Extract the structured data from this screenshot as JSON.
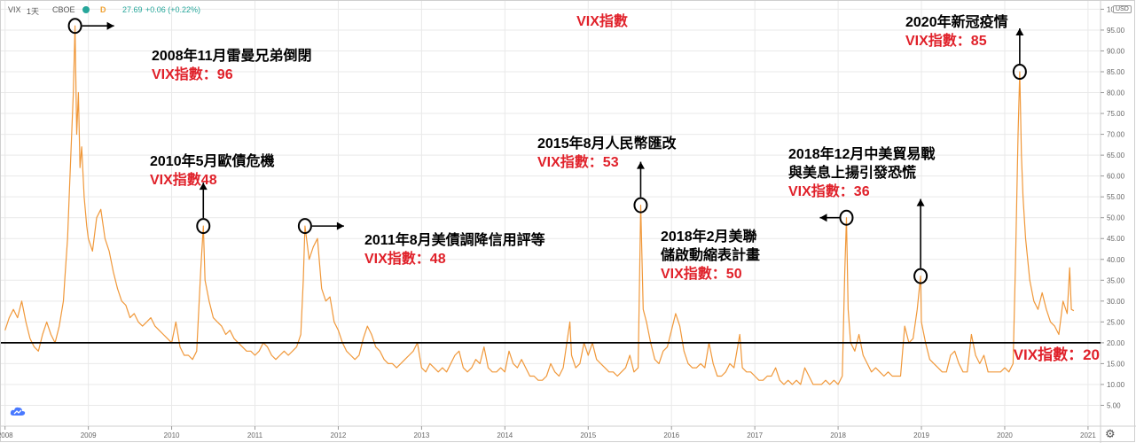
{
  "header": {
    "symbol": "VIX",
    "interval": "1天",
    "exchange": "CBOE",
    "status_dot_color": "#26a69a",
    "delay_badge": "D",
    "last": "27.69",
    "change": "+0.06 (+0.22%)",
    "currency": "USD"
  },
  "colors": {
    "line": "#f0983a",
    "annotation_black": "#000000",
    "annotation_red": "#e0212a",
    "axis_text": "#666666",
    "grid": "#e9e9e9"
  },
  "icons": {
    "logo": "tv-cloud-icon",
    "settings": "gear-icon"
  },
  "chart_data": {
    "type": "line",
    "title": "VIX指數",
    "x_axis": {
      "range": [
        2007.95,
        2021.15
      ],
      "ticks": [
        "2008",
        "2009",
        "2010",
        "2011",
        "2012",
        "2013",
        "2014",
        "2015",
        "2016",
        "2017",
        "2018",
        "2019",
        "2020",
        "2021"
      ]
    },
    "y_axis": {
      "range": [
        0,
        102
      ],
      "side": "right",
      "ticks": [
        "5.00",
        "10.00",
        "15.00",
        "20.00",
        "25.00",
        "30.00",
        "35.00",
        "40.00",
        "45.00",
        "50.00",
        "55.00",
        "60.00",
        "65.00",
        "70.00",
        "75.00",
        "80.00",
        "85.00",
        "90.00",
        "95.00",
        "100.00"
      ]
    },
    "grid": true,
    "series": [
      {
        "name": "VIX",
        "points": [
          [
            2008.0,
            23
          ],
          [
            2008.05,
            26
          ],
          [
            2008.1,
            28
          ],
          [
            2008.15,
            26
          ],
          [
            2008.2,
            30
          ],
          [
            2008.25,
            25
          ],
          [
            2008.3,
            21
          ],
          [
            2008.35,
            19
          ],
          [
            2008.4,
            18
          ],
          [
            2008.45,
            22
          ],
          [
            2008.5,
            25
          ],
          [
            2008.55,
            22
          ],
          [
            2008.6,
            20
          ],
          [
            2008.65,
            24
          ],
          [
            2008.7,
            30
          ],
          [
            2008.72,
            36
          ],
          [
            2008.75,
            45
          ],
          [
            2008.77,
            55
          ],
          [
            2008.8,
            70
          ],
          [
            2008.82,
            80
          ],
          [
            2008.84,
            96
          ],
          [
            2008.86,
            70
          ],
          [
            2008.88,
            80
          ],
          [
            2008.9,
            62
          ],
          [
            2008.92,
            67
          ],
          [
            2008.95,
            55
          ],
          [
            2008.98,
            48
          ],
          [
            2009.0,
            45
          ],
          [
            2009.05,
            42
          ],
          [
            2009.1,
            50
          ],
          [
            2009.15,
            52
          ],
          [
            2009.2,
            45
          ],
          [
            2009.25,
            42
          ],
          [
            2009.3,
            37
          ],
          [
            2009.35,
            33
          ],
          [
            2009.4,
            30
          ],
          [
            2009.45,
            29
          ],
          [
            2009.5,
            26
          ],
          [
            2009.55,
            27
          ],
          [
            2009.6,
            25
          ],
          [
            2009.65,
            24
          ],
          [
            2009.7,
            25
          ],
          [
            2009.75,
            26
          ],
          [
            2009.8,
            24
          ],
          [
            2009.85,
            23
          ],
          [
            2009.9,
            22
          ],
          [
            2009.95,
            21
          ],
          [
            2010.0,
            20
          ],
          [
            2010.05,
            25
          ],
          [
            2010.1,
            19
          ],
          [
            2010.15,
            17
          ],
          [
            2010.2,
            17
          ],
          [
            2010.25,
            16
          ],
          [
            2010.3,
            18
          ],
          [
            2010.35,
            38
          ],
          [
            2010.38,
            48
          ],
          [
            2010.4,
            35
          ],
          [
            2010.45,
            30
          ],
          [
            2010.5,
            26
          ],
          [
            2010.55,
            25
          ],
          [
            2010.6,
            24
          ],
          [
            2010.65,
            22
          ],
          [
            2010.7,
            23
          ],
          [
            2010.75,
            21
          ],
          [
            2010.8,
            20
          ],
          [
            2010.85,
            19
          ],
          [
            2010.9,
            18
          ],
          [
            2010.95,
            18
          ],
          [
            2011.0,
            17
          ],
          [
            2011.05,
            18
          ],
          [
            2011.1,
            20
          ],
          [
            2011.15,
            19
          ],
          [
            2011.2,
            17
          ],
          [
            2011.25,
            16
          ],
          [
            2011.3,
            17
          ],
          [
            2011.35,
            18
          ],
          [
            2011.4,
            17
          ],
          [
            2011.45,
            18
          ],
          [
            2011.5,
            19
          ],
          [
            2011.55,
            22
          ],
          [
            2011.58,
            35
          ],
          [
            2011.6,
            48
          ],
          [
            2011.65,
            40
          ],
          [
            2011.7,
            43
          ],
          [
            2011.75,
            45
          ],
          [
            2011.8,
            33
          ],
          [
            2011.85,
            30
          ],
          [
            2011.9,
            31
          ],
          [
            2011.95,
            25
          ],
          [
            2012.0,
            23
          ],
          [
            2012.05,
            20
          ],
          [
            2012.1,
            18
          ],
          [
            2012.15,
            17
          ],
          [
            2012.2,
            16
          ],
          [
            2012.25,
            17
          ],
          [
            2012.3,
            21
          ],
          [
            2012.35,
            24
          ],
          [
            2012.4,
            22
          ],
          [
            2012.45,
            19
          ],
          [
            2012.5,
            18
          ],
          [
            2012.55,
            16
          ],
          [
            2012.6,
            15
          ],
          [
            2012.65,
            15
          ],
          [
            2012.7,
            14
          ],
          [
            2012.75,
            15
          ],
          [
            2012.8,
            16
          ],
          [
            2012.85,
            17
          ],
          [
            2012.9,
            18
          ],
          [
            2012.95,
            20
          ],
          [
            2013.0,
            14
          ],
          [
            2013.05,
            13
          ],
          [
            2013.1,
            15
          ],
          [
            2013.15,
            14
          ],
          [
            2013.2,
            13
          ],
          [
            2013.25,
            14
          ],
          [
            2013.3,
            13
          ],
          [
            2013.35,
            15
          ],
          [
            2013.4,
            17
          ],
          [
            2013.45,
            18
          ],
          [
            2013.5,
            14
          ],
          [
            2013.55,
            13
          ],
          [
            2013.6,
            14
          ],
          [
            2013.65,
            16
          ],
          [
            2013.7,
            15
          ],
          [
            2013.75,
            19
          ],
          [
            2013.8,
            14
          ],
          [
            2013.85,
            13
          ],
          [
            2013.9,
            13
          ],
          [
            2013.95,
            14
          ],
          [
            2014.0,
            13
          ],
          [
            2014.05,
            18
          ],
          [
            2014.1,
            15
          ],
          [
            2014.15,
            14
          ],
          [
            2014.2,
            16
          ],
          [
            2014.25,
            14
          ],
          [
            2014.3,
            12
          ],
          [
            2014.35,
            12
          ],
          [
            2014.4,
            11
          ],
          [
            2014.45,
            11
          ],
          [
            2014.5,
            12
          ],
          [
            2014.55,
            15
          ],
          [
            2014.6,
            13
          ],
          [
            2014.65,
            12
          ],
          [
            2014.7,
            14
          ],
          [
            2014.78,
            25
          ],
          [
            2014.8,
            17
          ],
          [
            2014.85,
            14
          ],
          [
            2014.9,
            15
          ],
          [
            2014.95,
            20
          ],
          [
            2015.0,
            17
          ],
          [
            2015.05,
            20
          ],
          [
            2015.1,
            16
          ],
          [
            2015.15,
            15
          ],
          [
            2015.2,
            14
          ],
          [
            2015.25,
            13
          ],
          [
            2015.3,
            13
          ],
          [
            2015.35,
            12
          ],
          [
            2015.4,
            13
          ],
          [
            2015.45,
            14
          ],
          [
            2015.5,
            17
          ],
          [
            2015.55,
            13
          ],
          [
            2015.6,
            14
          ],
          [
            2015.63,
            53
          ],
          [
            2015.66,
            28
          ],
          [
            2015.7,
            25
          ],
          [
            2015.75,
            20
          ],
          [
            2015.8,
            16
          ],
          [
            2015.85,
            15
          ],
          [
            2015.9,
            18
          ],
          [
            2015.95,
            19
          ],
          [
            2016.0,
            23
          ],
          [
            2016.05,
            27
          ],
          [
            2016.1,
            24
          ],
          [
            2016.15,
            18
          ],
          [
            2016.2,
            15
          ],
          [
            2016.25,
            14
          ],
          [
            2016.3,
            14
          ],
          [
            2016.35,
            15
          ],
          [
            2016.4,
            14
          ],
          [
            2016.45,
            20
          ],
          [
            2016.5,
            15
          ],
          [
            2016.55,
            12
          ],
          [
            2016.6,
            12
          ],
          [
            2016.65,
            13
          ],
          [
            2016.7,
            15
          ],
          [
            2016.75,
            14
          ],
          [
            2016.82,
            22
          ],
          [
            2016.85,
            14
          ],
          [
            2016.9,
            13
          ],
          [
            2016.95,
            13
          ],
          [
            2017.0,
            12
          ],
          [
            2017.05,
            11
          ],
          [
            2017.1,
            11
          ],
          [
            2017.15,
            12
          ],
          [
            2017.2,
            12
          ],
          [
            2017.25,
            14
          ],
          [
            2017.3,
            11
          ],
          [
            2017.35,
            10
          ],
          [
            2017.4,
            11
          ],
          [
            2017.45,
            10
          ],
          [
            2017.5,
            11
          ],
          [
            2017.55,
            10
          ],
          [
            2017.6,
            14
          ],
          [
            2017.65,
            12
          ],
          [
            2017.7,
            10
          ],
          [
            2017.75,
            10
          ],
          [
            2017.8,
            10
          ],
          [
            2017.85,
            11
          ],
          [
            2017.9,
            10
          ],
          [
            2017.95,
            11
          ],
          [
            2018.0,
            10
          ],
          [
            2018.05,
            12
          ],
          [
            2018.08,
            37
          ],
          [
            2018.1,
            50
          ],
          [
            2018.12,
            28
          ],
          [
            2018.15,
            20
          ],
          [
            2018.2,
            18
          ],
          [
            2018.25,
            22
          ],
          [
            2018.3,
            17
          ],
          [
            2018.35,
            15
          ],
          [
            2018.4,
            13
          ],
          [
            2018.45,
            14
          ],
          [
            2018.5,
            13
          ],
          [
            2018.55,
            12
          ],
          [
            2018.6,
            13
          ],
          [
            2018.65,
            12
          ],
          [
            2018.7,
            12
          ],
          [
            2018.75,
            12
          ],
          [
            2018.8,
            24
          ],
          [
            2018.85,
            20
          ],
          [
            2018.9,
            21
          ],
          [
            2018.95,
            28
          ],
          [
            2018.99,
            36
          ],
          [
            2019.0,
            25
          ],
          [
            2019.05,
            20
          ],
          [
            2019.1,
            16
          ],
          [
            2019.15,
            15
          ],
          [
            2019.2,
            14
          ],
          [
            2019.25,
            13
          ],
          [
            2019.3,
            13
          ],
          [
            2019.35,
            17
          ],
          [
            2019.4,
            18
          ],
          [
            2019.45,
            15
          ],
          [
            2019.5,
            13
          ],
          [
            2019.55,
            13
          ],
          [
            2019.6,
            22
          ],
          [
            2019.65,
            17
          ],
          [
            2019.7,
            15
          ],
          [
            2019.75,
            17
          ],
          [
            2019.8,
            13
          ],
          [
            2019.85,
            13
          ],
          [
            2019.9,
            13
          ],
          [
            2019.95,
            13
          ],
          [
            2020.0,
            14
          ],
          [
            2020.05,
            13
          ],
          [
            2020.1,
            15
          ],
          [
            2020.13,
            40
          ],
          [
            2020.16,
            70
          ],
          [
            2020.18,
            85
          ],
          [
            2020.2,
            65
          ],
          [
            2020.22,
            55
          ],
          [
            2020.25,
            45
          ],
          [
            2020.3,
            35
          ],
          [
            2020.35,
            30
          ],
          [
            2020.4,
            28
          ],
          [
            2020.45,
            32
          ],
          [
            2020.5,
            28
          ],
          [
            2020.55,
            25
          ],
          [
            2020.6,
            24
          ],
          [
            2020.65,
            22
          ],
          [
            2020.7,
            30
          ],
          [
            2020.75,
            27
          ],
          [
            2020.78,
            38
          ],
          [
            2020.8,
            28
          ],
          [
            2020.83,
            27.69
          ]
        ]
      }
    ],
    "reference_line": {
      "y": 20,
      "label": "VIX指數：20"
    },
    "annotations": [
      {
        "marker": [
          2008.84,
          96
        ],
        "title": "2008年11月雷曼兄弟倒閉",
        "value": "VIX指數：96"
      },
      {
        "marker": [
          2010.38,
          48
        ],
        "title": "2010年5月歐債危機",
        "value": "VIX指數48"
      },
      {
        "marker": [
          2011.6,
          48
        ],
        "title": "2011年8月美債調降信用評等",
        "value": "VIX指數：48"
      },
      {
        "marker": [
          2015.63,
          53
        ],
        "title": "2015年8月人民幣匯改",
        "value": "VIX指數：53"
      },
      {
        "marker": [
          2018.1,
          50
        ],
        "title": "2018年2月美聯儲啟動縮表計畫",
        "title_lines": [
          "2018年2月美聯",
          "儲啟動縮表計畫"
        ],
        "value": "VIX指數：50"
      },
      {
        "marker": [
          2018.99,
          36
        ],
        "title": "2018年12月中美貿易戰與美息上揚引發恐慌",
        "title_lines": [
          "2018年12月中美貿易戰",
          "與美息上揚引發恐慌"
        ],
        "value": "VIX指數：36"
      },
      {
        "marker": [
          2020.18,
          85
        ],
        "title": "2020年新冠疫情",
        "value": "VIX指數：85"
      }
    ]
  }
}
